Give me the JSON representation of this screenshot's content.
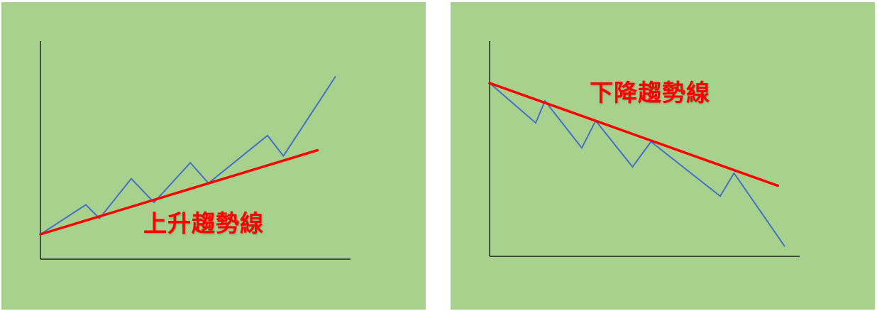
{
  "panels": [
    {
      "label": "上升趨勢線",
      "price_path": [
        [
          0,
          0
        ],
        [
          1,
          1.3
        ],
        [
          1.3,
          0.7
        ],
        [
          2,
          2.45
        ],
        [
          2.5,
          1.4
        ],
        [
          3.3,
          3.15
        ],
        [
          3.7,
          2.25
        ],
        [
          5,
          4.35
        ],
        [
          5.35,
          3.45
        ],
        [
          6.5,
          6.95
        ]
      ],
      "trendline": [
        [
          0,
          0
        ],
        [
          6.1,
          3.7
        ]
      ]
    },
    {
      "label": "下降趨勢線",
      "price_path": [
        [
          0,
          0
        ],
        [
          1,
          -1.9
        ],
        [
          1.2,
          -0.85
        ],
        [
          2,
          -3.1
        ],
        [
          2.3,
          -1.8
        ],
        [
          3.1,
          -4.0
        ],
        [
          3.5,
          -2.8
        ],
        [
          5,
          -5.4
        ],
        [
          5.3,
          -4.3
        ],
        [
          6.4,
          -7.8
        ]
      ],
      "trendline": [
        [
          0,
          0
        ],
        [
          6.25,
          -4.9
        ]
      ]
    }
  ],
  "colors": {
    "background": "#a9d18e",
    "axis": "#000000",
    "price": "#4472c4",
    "trendline": "#ff0000",
    "label": "#ff0000"
  }
}
